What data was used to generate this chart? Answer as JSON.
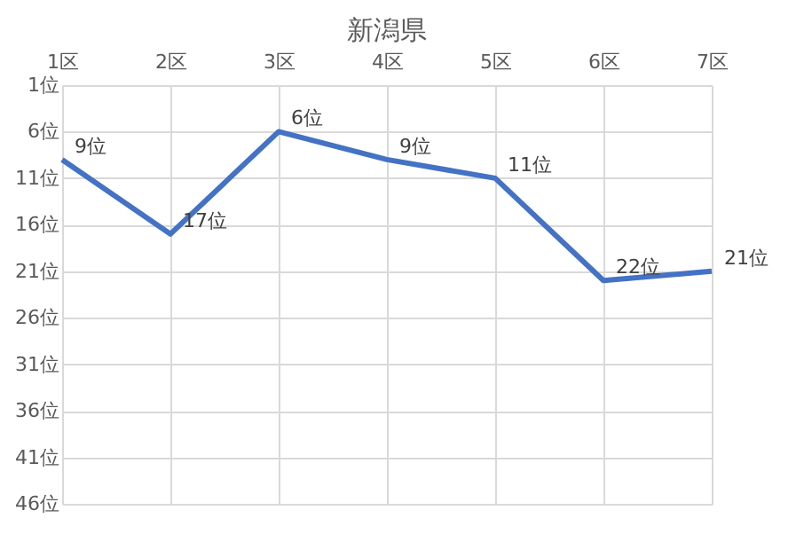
{
  "chart_data": {
    "type": "line",
    "title": "新潟県",
    "categories": [
      "1区",
      "2区",
      "3区",
      "4区",
      "5区",
      "6区",
      "7区"
    ],
    "series": [
      {
        "color": "#4472c4",
        "values": [
          9,
          17,
          6,
          9,
          11,
          22,
          21
        ],
        "value_labels": [
          "9位",
          "17位",
          "6位",
          "9位",
          "11位",
          "22位",
          "21位"
        ]
      }
    ],
    "ylim": [
      46,
      1
    ],
    "yticks": [
      {
        "value": 1,
        "label": "1位"
      },
      {
        "value": 6,
        "label": "6位"
      },
      {
        "value": 11,
        "label": "11位"
      },
      {
        "value": 16,
        "label": "16位"
      },
      {
        "value": 21,
        "label": "21位"
      },
      {
        "value": 26,
        "label": "26位"
      },
      {
        "value": 31,
        "label": "31位"
      },
      {
        "value": 36,
        "label": "36位"
      },
      {
        "value": 41,
        "label": "41位"
      },
      {
        "value": 46,
        "label": "46位"
      }
    ],
    "grid": true,
    "marker": "none",
    "line_style": "solid"
  }
}
